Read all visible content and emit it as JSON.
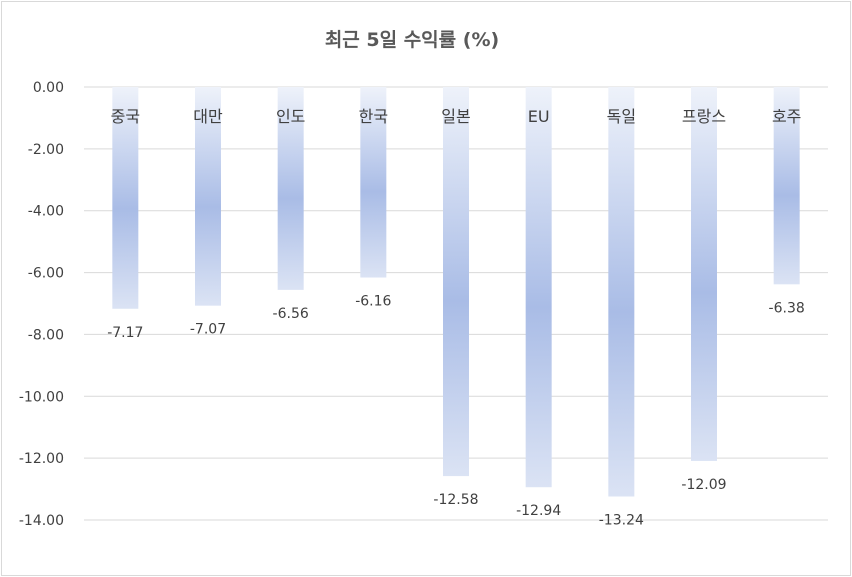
{
  "chart_data": {
    "type": "bar",
    "title": "최근 5일 수익률 (%)",
    "categories": [
      "중국",
      "대만",
      "인도",
      "한국",
      "일본",
      "EU",
      "독일",
      "프랑스",
      "호주"
    ],
    "values": [
      -7.17,
      -7.07,
      -6.56,
      -6.16,
      -12.58,
      -12.94,
      -13.24,
      -12.09,
      -6.38
    ],
    "value_labels": [
      "-7.17",
      "-7.07",
      "-6.56",
      "-6.16",
      "-12.58",
      "-12.94",
      "-13.24",
      "-12.09",
      "-6.38"
    ],
    "y_ticks": [
      "0.00",
      "-2.00",
      "-4.00",
      "-6.00",
      "-8.00",
      "-10.00",
      "-12.00",
      "-14.00"
    ],
    "y_tick_values": [
      0,
      -2,
      -4,
      -6,
      -8,
      -10,
      -12,
      -14
    ],
    "ylim": [
      -14,
      0
    ],
    "xlabel": "",
    "ylabel": "",
    "grid": true,
    "legend": "none",
    "colors": {
      "bar_light": "#eef2fa",
      "bar_mid": "#a9bce6",
      "grid": "#d9d9d9",
      "text": "#404040",
      "title": "#595959"
    }
  }
}
